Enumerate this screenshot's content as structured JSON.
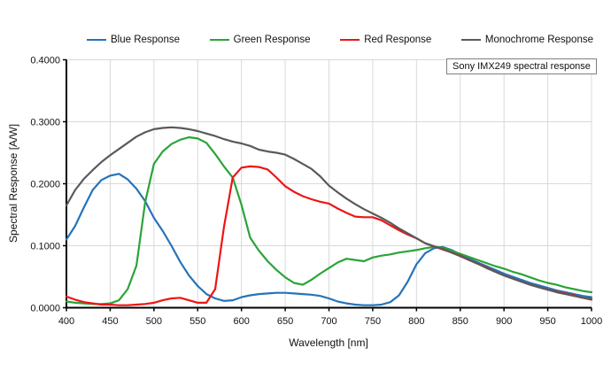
{
  "chart_data": {
    "type": "line",
    "title": "",
    "annotation": "Sony IMX249 spectral response",
    "xlabel": "Wavelength [nm]",
    "ylabel": "Spectral Response [A/W]",
    "xlim": [
      400,
      1000
    ],
    "ylim": [
      0,
      0.4
    ],
    "x_tick_step": 50,
    "y_tick_step": 0.1,
    "y_tick_decimals": 4,
    "grid": true,
    "legend_position": "top",
    "grid_color": "#d9d9d9",
    "axis_color": "#000000",
    "x": [
      400,
      410,
      420,
      430,
      440,
      450,
      460,
      470,
      480,
      490,
      500,
      510,
      520,
      530,
      540,
      550,
      560,
      570,
      580,
      590,
      600,
      610,
      620,
      630,
      640,
      650,
      660,
      670,
      680,
      690,
      700,
      710,
      720,
      730,
      740,
      750,
      760,
      770,
      780,
      790,
      800,
      810,
      820,
      830,
      840,
      850,
      860,
      870,
      880,
      890,
      900,
      910,
      920,
      930,
      940,
      950,
      960,
      970,
      980,
      990,
      1000
    ],
    "series": [
      {
        "name": "Blue Response",
        "color": "#2573ba",
        "values": [
          0.11,
          0.132,
          0.162,
          0.19,
          0.206,
          0.213,
          0.216,
          0.207,
          0.192,
          0.172,
          0.145,
          0.124,
          0.1,
          0.074,
          0.052,
          0.035,
          0.022,
          0.015,
          0.011,
          0.012,
          0.017,
          0.02,
          0.022,
          0.023,
          0.024,
          0.024,
          0.023,
          0.022,
          0.021,
          0.019,
          0.015,
          0.01,
          0.007,
          0.005,
          0.004,
          0.004,
          0.005,
          0.009,
          0.02,
          0.042,
          0.07,
          0.088,
          0.096,
          0.098,
          0.093,
          0.086,
          0.079,
          0.073,
          0.067,
          0.061,
          0.055,
          0.05,
          0.045,
          0.04,
          0.036,
          0.032,
          0.028,
          0.025,
          0.022,
          0.019,
          0.017
        ]
      },
      {
        "name": "Green Response",
        "color": "#2aa437",
        "values": [
          0.01,
          0.008,
          0.007,
          0.006,
          0.006,
          0.007,
          0.012,
          0.03,
          0.068,
          0.17,
          0.232,
          0.252,
          0.264,
          0.271,
          0.275,
          0.273,
          0.266,
          0.248,
          0.228,
          0.21,
          0.166,
          0.113,
          0.092,
          0.075,
          0.061,
          0.049,
          0.04,
          0.037,
          0.045,
          0.055,
          0.064,
          0.073,
          0.079,
          0.077,
          0.075,
          0.081,
          0.084,
          0.086,
          0.089,
          0.091,
          0.093,
          0.096,
          0.098,
          0.097,
          0.092,
          0.087,
          0.082,
          0.077,
          0.072,
          0.067,
          0.063,
          0.058,
          0.054,
          0.049,
          0.044,
          0.04,
          0.037,
          0.033,
          0.03,
          0.027,
          0.025
        ]
      },
      {
        "name": "Red Response",
        "color": "#ed1515",
        "values": [
          0.018,
          0.013,
          0.009,
          0.007,
          0.005,
          0.005,
          0.004,
          0.004,
          0.005,
          0.006,
          0.008,
          0.012,
          0.015,
          0.016,
          0.012,
          0.008,
          0.008,
          0.03,
          0.13,
          0.21,
          0.226,
          0.228,
          0.227,
          0.223,
          0.21,
          0.196,
          0.187,
          0.18,
          0.175,
          0.171,
          0.168,
          0.16,
          0.153,
          0.147,
          0.146,
          0.146,
          0.141,
          0.133,
          0.125,
          0.118,
          0.112,
          0.104,
          0.099,
          0.094,
          0.089,
          0.084,
          0.077,
          0.071,
          0.065,
          0.058,
          0.052,
          0.047,
          0.042,
          0.037,
          0.033,
          0.029,
          0.026,
          0.023,
          0.02,
          0.016,
          0.013
        ]
      },
      {
        "name": "Monochrome Response",
        "color": "#5a5a5a",
        "values": [
          0.165,
          0.19,
          0.208,
          0.222,
          0.235,
          0.246,
          0.256,
          0.266,
          0.276,
          0.283,
          0.288,
          0.29,
          0.291,
          0.29,
          0.288,
          0.285,
          0.281,
          0.277,
          0.272,
          0.268,
          0.265,
          0.261,
          0.255,
          0.252,
          0.25,
          0.247,
          0.24,
          0.232,
          0.224,
          0.212,
          0.197,
          0.186,
          0.176,
          0.167,
          0.159,
          0.152,
          0.145,
          0.137,
          0.128,
          0.12,
          0.112,
          0.104,
          0.099,
          0.095,
          0.089,
          0.083,
          0.077,
          0.071,
          0.064,
          0.058,
          0.052,
          0.047,
          0.042,
          0.037,
          0.033,
          0.029,
          0.025,
          0.022,
          0.019,
          0.016,
          0.014
        ]
      }
    ]
  }
}
